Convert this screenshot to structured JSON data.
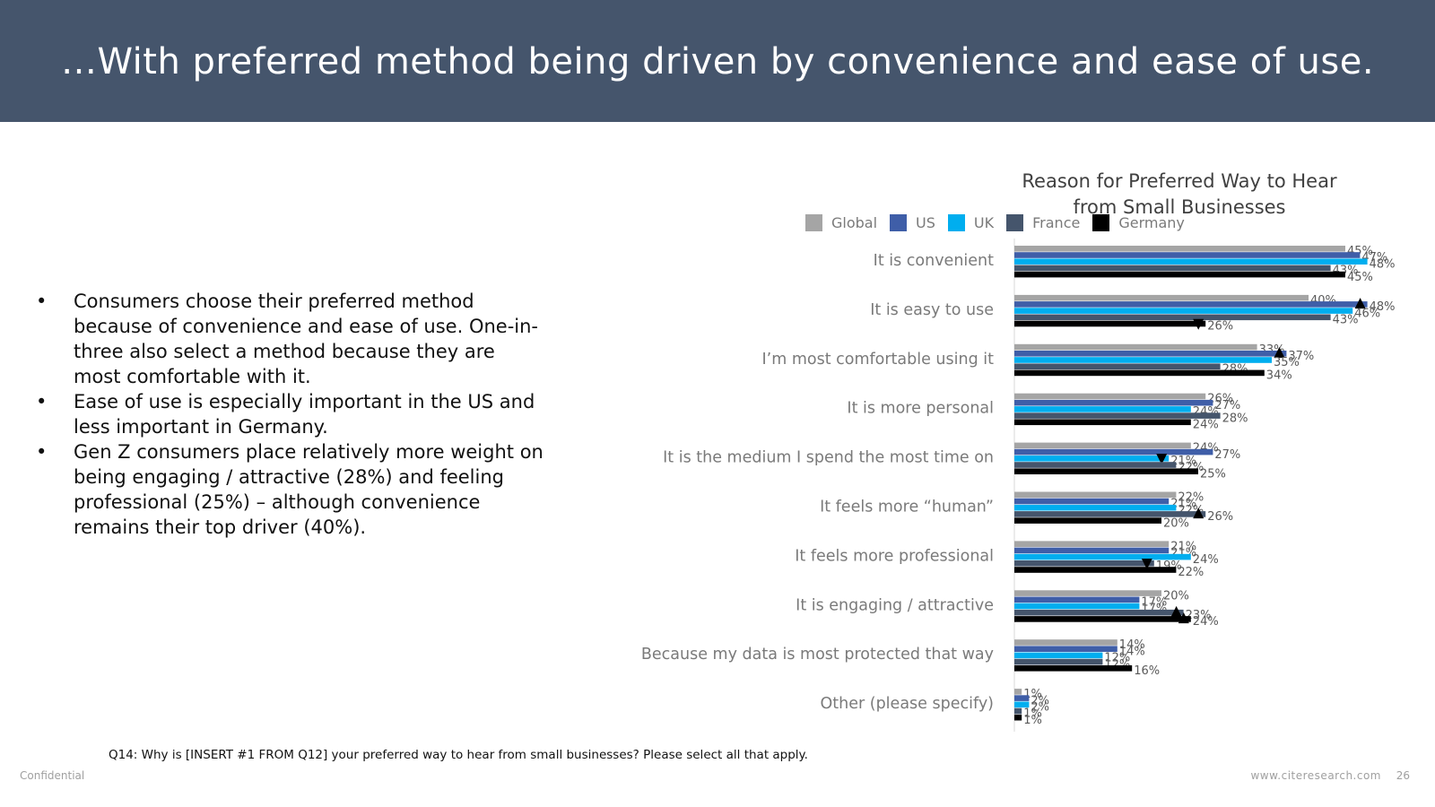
{
  "header": {
    "title": "…With preferred method being driven by convenience and ease of use."
  },
  "bullets": [
    {
      "marker": "•",
      "text": "Consumers choose their preferred method because of convenience and ease of use. One-in-three also select a method because they are most comfortable with it."
    },
    {
      "marker": "•",
      "text": "Ease of use is especially important in the US and less important in Germany."
    },
    {
      "marker": "•",
      "text": "Gen Z consumers place relatively more weight on being engaging / attractive (28%) and feeling professional (25%) – although convenience remains their top driver (40%)."
    }
  ],
  "chart_data": {
    "type": "bar",
    "orientation": "horizontal",
    "title_lines": [
      "Reason for Preferred Way to Hear",
      "from Small Businesses"
    ],
    "categories": [
      "It is convenient",
      "It is easy to use",
      "I’m most comfortable using it",
      "It is more personal",
      "It is the medium I spend the most time on",
      "It feels more “human”",
      "It feels more professional",
      "It is engaging / attractive",
      "Because my data is most protected that way",
      "Other (please specify)"
    ],
    "series": [
      {
        "name": "Global",
        "color": "#a5a5a5",
        "values": [
          45,
          40,
          33,
          26,
          24,
          22,
          21,
          20,
          14,
          1
        ],
        "labels": [
          "45%",
          "40%",
          "33%",
          "26%",
          "24%",
          "22%",
          "21%",
          "20%",
          "14%",
          "1%"
        ],
        "markers": [
          "",
          "",
          "",
          "",
          "",
          "",
          "",
          "",
          "",
          ""
        ]
      },
      {
        "name": "US",
        "color": "#3f5ea8",
        "values": [
          47,
          48,
          37,
          27,
          27,
          21,
          21,
          17,
          14,
          2
        ],
        "labels": [
          "47%",
          "48%",
          "37%",
          "27%",
          "27%",
          "21%",
          "21%",
          "17%",
          "14%",
          "2%"
        ],
        "markers": [
          "",
          "up",
          "up",
          "",
          "",
          "",
          "",
          "",
          "",
          ""
        ]
      },
      {
        "name": "UK",
        "color": "#00aeef",
        "values": [
          48,
          46,
          35,
          24,
          21,
          22,
          24,
          17,
          12,
          2
        ],
        "labels": [
          "48%",
          "46%",
          "35%",
          "24%",
          "21%",
          "22%",
          "24%",
          "17%",
          "12%",
          "2%"
        ],
        "markers": [
          "",
          "",
          "",
          "",
          "down",
          "",
          "",
          "",
          "",
          ""
        ]
      },
      {
        "name": "France",
        "color": "#45556c",
        "values": [
          43,
          43,
          28,
          28,
          22,
          26,
          19,
          23,
          12,
          1
        ],
        "labels": [
          "43%",
          "43%",
          "28%",
          "28%",
          "22%",
          "26%",
          "19%",
          "23%",
          "12%",
          "1%"
        ],
        "markers": [
          "",
          "",
          "",
          "",
          "",
          "up",
          "down",
          "up",
          "",
          ""
        ]
      },
      {
        "name": "Germany",
        "color": "#000000",
        "values": [
          45,
          26,
          34,
          24,
          25,
          20,
          22,
          24,
          16,
          1
        ],
        "labels": [
          "45%",
          "26%",
          "34%",
          "24%",
          "25%",
          "20%",
          "22%",
          "24%",
          "16%",
          "1%"
        ],
        "markers": [
          "",
          "down",
          "",
          "",
          "",
          "",
          "",
          "up",
          "",
          ""
        ]
      }
    ],
    "xlim": [
      0,
      50
    ],
    "grid": false
  },
  "footnote": "Q14: Why is [INSERT #1 FROM Q12] your preferred way to hear from small businesses? Please select all that apply.",
  "footer": {
    "confidential": "Confidential",
    "website": "www.citeresearch.com",
    "page": "26"
  }
}
